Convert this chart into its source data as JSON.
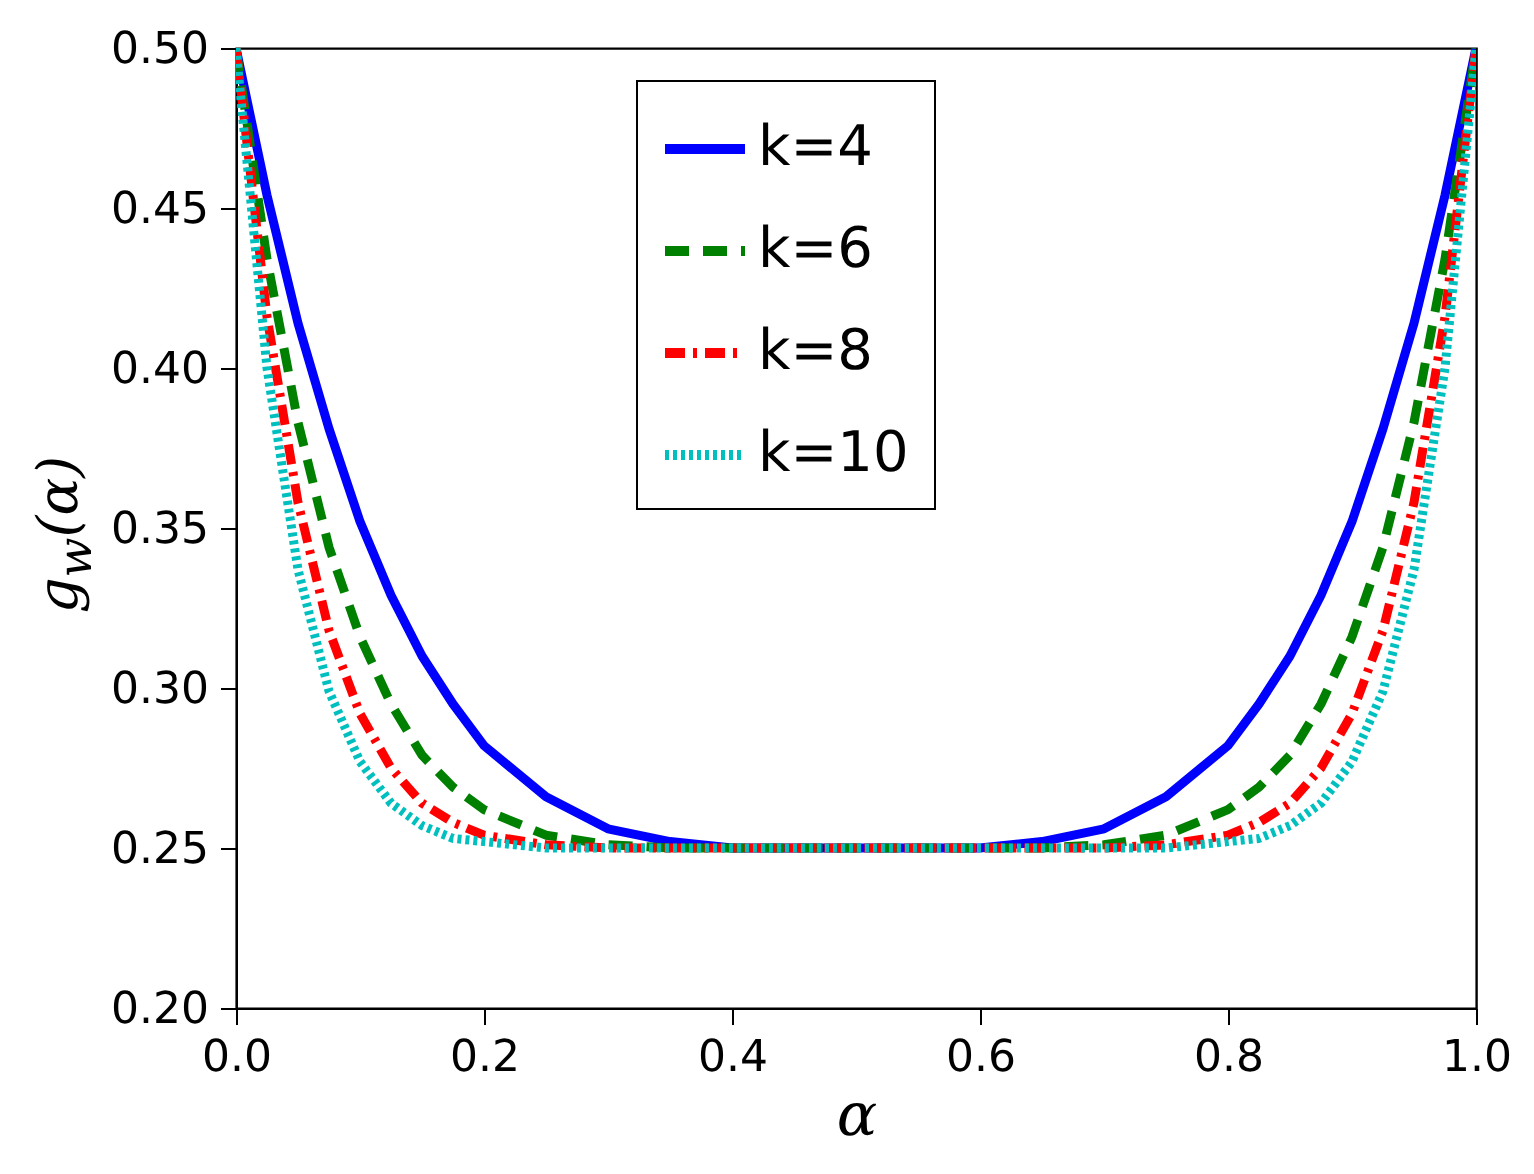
{
  "chart_data": {
    "type": "line",
    "xlabel": "α",
    "ylabel": "g$_{w}$(α)",
    "x": [
      0,
      0.025,
      0.05,
      0.075,
      0.1,
      0.125,
      0.15,
      0.175,
      0.2,
      0.25,
      0.3,
      0.35,
      0.4,
      0.5,
      0.6,
      0.65,
      0.7,
      0.75,
      0.8,
      0.825,
      0.85,
      0.875,
      0.9,
      0.925,
      0.95,
      0.975,
      1
    ],
    "series": [
      {
        "name": "k=4",
        "color": "#0000ff",
        "line_style": "solid",
        "values": [
          0.5,
          0.454,
          0.414,
          0.381,
          0.352,
          0.329,
          0.31,
          0.295,
          0.282,
          0.266,
          0.256,
          0.252,
          0.25,
          0.25,
          0.25,
          0.252,
          0.256,
          0.266,
          0.282,
          0.295,
          0.31,
          0.329,
          0.352,
          0.381,
          0.414,
          0.454,
          0.5
        ]
      },
      {
        "name": "k=6",
        "color": "#008000",
        "line_style": "dashed",
        "values": [
          0.5,
          0.434,
          0.383,
          0.344,
          0.316,
          0.295,
          0.279,
          0.269,
          0.262,
          0.254,
          0.251,
          0.25,
          0.25,
          0.25,
          0.25,
          0.25,
          0.251,
          0.254,
          0.262,
          0.269,
          0.279,
          0.295,
          0.316,
          0.344,
          0.383,
          0.434,
          0.5
        ]
      },
      {
        "name": "k=8",
        "color": "#ff0000",
        "line_style": "dashdot",
        "values": [
          0.5,
          0.416,
          0.358,
          0.318,
          0.292,
          0.275,
          0.264,
          0.258,
          0.254,
          0.251,
          0.25,
          0.25,
          0.25,
          0.25,
          0.25,
          0.25,
          0.25,
          0.251,
          0.254,
          0.258,
          0.264,
          0.275,
          0.292,
          0.318,
          0.358,
          0.416,
          0.5
        ]
      },
      {
        "name": "k=10",
        "color": "#00bfbf",
        "line_style": "dotted",
        "values": [
          0.5,
          0.4,
          0.337,
          0.299,
          0.277,
          0.264,
          0.257,
          0.253,
          0.252,
          0.25,
          0.25,
          0.25,
          0.25,
          0.25,
          0.25,
          0.25,
          0.25,
          0.25,
          0.252,
          0.253,
          0.257,
          0.264,
          0.277,
          0.299,
          0.337,
          0.4,
          0.5
        ]
      }
    ],
    "xlim": [
      0,
      1
    ],
    "ylim": [
      0.2,
      0.5
    ],
    "xticks": [
      {
        "value": 0,
        "label": "0.0"
      },
      {
        "value": 0.2,
        "label": "0.2"
      },
      {
        "value": 0.4,
        "label": "0.4"
      },
      {
        "value": 0.6,
        "label": "0.6"
      },
      {
        "value": 0.8,
        "label": "0.8"
      },
      {
        "value": 1,
        "label": "1.0"
      }
    ],
    "yticks": [
      {
        "value": 0.2,
        "label": "0.20"
      },
      {
        "value": 0.25,
        "label": "0.25"
      },
      {
        "value": 0.3,
        "label": "0.30"
      },
      {
        "value": 0.35,
        "label": "0.35"
      },
      {
        "value": 0.4,
        "label": "0.40"
      },
      {
        "value": 0.45,
        "label": "0.45"
      },
      {
        "value": 0.5,
        "label": "0.50"
      }
    ],
    "legend": "top",
    "marker": "none"
  }
}
